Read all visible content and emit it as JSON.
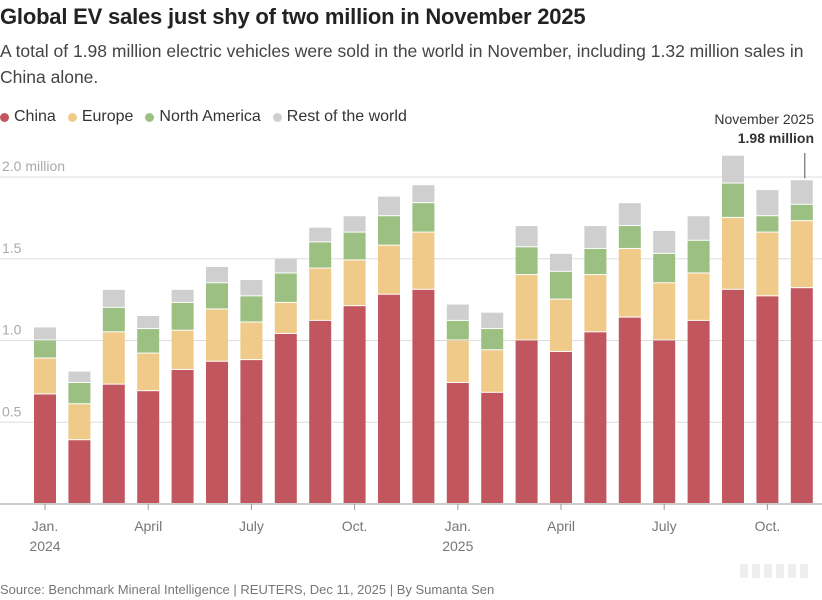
{
  "title": "Global EV sales just shy of two million in November 2025",
  "subtitle": "A total of 1.98 million electric vehicles were sold in the world in November, including 1.32 million sales in China alone.",
  "annotation": {
    "month": "November 2025",
    "value": "1.98 million"
  },
  "source": "Source: Benchmark Mineral Intelligence  | REUTERS, Dec 11, 2025 | By Sumanta Sen",
  "colors": {
    "China": "#c1565f",
    "Europe": "#efca88",
    "North America": "#9cbf82",
    "Rest of the world": "#cfcfcf",
    "grid": "#dddddd",
    "axis": "#999999"
  },
  "chart_data": {
    "type": "bar",
    "stacked": true,
    "unit": "million",
    "categories": [
      "Jan 2024",
      "Feb 2024",
      "Mar 2024",
      "Apr 2024",
      "May 2024",
      "Jun 2024",
      "Jul 2024",
      "Aug 2024",
      "Sep 2024",
      "Oct 2024",
      "Nov 2024",
      "Dec 2024",
      "Jan 2025",
      "Feb 2025",
      "Mar 2025",
      "Apr 2025",
      "May 2025",
      "Jun 2025",
      "Jul 2025",
      "Aug 2025",
      "Sep 2025",
      "Oct 2025",
      "Nov 2025"
    ],
    "series": [
      {
        "name": "China",
        "values": [
          0.67,
          0.39,
          0.73,
          0.69,
          0.82,
          0.87,
          0.88,
          1.04,
          1.12,
          1.21,
          1.28,
          1.31,
          0.74,
          0.68,
          1.0,
          0.93,
          1.05,
          1.14,
          1.0,
          1.12,
          1.31,
          1.27,
          1.32
        ]
      },
      {
        "name": "Europe",
        "values": [
          0.22,
          0.22,
          0.32,
          0.23,
          0.24,
          0.32,
          0.23,
          0.19,
          0.32,
          0.28,
          0.3,
          0.35,
          0.26,
          0.26,
          0.4,
          0.32,
          0.35,
          0.42,
          0.35,
          0.29,
          0.44,
          0.39,
          0.41
        ]
      },
      {
        "name": "North America",
        "values": [
          0.11,
          0.13,
          0.15,
          0.15,
          0.17,
          0.16,
          0.16,
          0.18,
          0.16,
          0.17,
          0.18,
          0.18,
          0.12,
          0.13,
          0.17,
          0.17,
          0.16,
          0.14,
          0.18,
          0.2,
          0.21,
          0.1,
          0.1
        ]
      },
      {
        "name": "Rest of the world",
        "values": [
          0.08,
          0.07,
          0.11,
          0.08,
          0.08,
          0.1,
          0.1,
          0.09,
          0.09,
          0.1,
          0.12,
          0.11,
          0.1,
          0.1,
          0.13,
          0.11,
          0.14,
          0.14,
          0.14,
          0.15,
          0.17,
          0.16,
          0.15
        ]
      }
    ],
    "legend": [
      "China",
      "Europe",
      "North America",
      "Rest of the world"
    ],
    "y_ticks": [
      {
        "value": 0.5,
        "label": "0.5"
      },
      {
        "value": 1.0,
        "label": "1.0"
      },
      {
        "value": 1.5,
        "label": "1.5"
      },
      {
        "value": 2.0,
        "label": "2.0 million"
      }
    ],
    "ylim": [
      0,
      2.15
    ],
    "x_ticks": [
      {
        "index": 0,
        "label": "Jan.",
        "year": "2024"
      },
      {
        "index": 3,
        "label": "April"
      },
      {
        "index": 6,
        "label": "July"
      },
      {
        "index": 9,
        "label": "Oct."
      },
      {
        "index": 12,
        "label": "Jan.",
        "year": "2025"
      },
      {
        "index": 15,
        "label": "April"
      },
      {
        "index": 18,
        "label": "July"
      },
      {
        "index": 21,
        "label": "Oct."
      }
    ],
    "xlabel": "",
    "ylabel": "",
    "grid": true
  }
}
